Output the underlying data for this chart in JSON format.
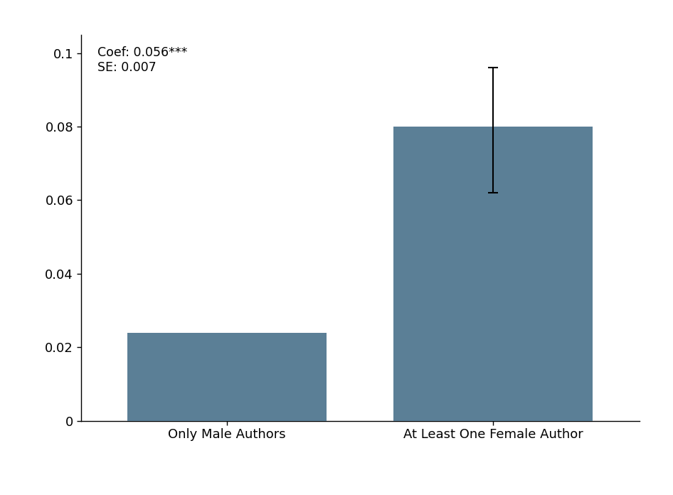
{
  "categories": [
    "Only Male Authors",
    "At Least One Female Author"
  ],
  "values": [
    0.024,
    0.08
  ],
  "bar_color": "#5b7f96",
  "error_upper": 0.016,
  "error_lower": 0.018,
  "error_bar_position": 1,
  "annotation_text": "Coef: 0.056***\nSE: 0.007",
  "ylim": [
    0,
    0.105
  ],
  "yticks": [
    0,
    0.02,
    0.04,
    0.06,
    0.08,
    0.1
  ],
  "ytick_labels": [
    "0",
    "0.02",
    "0.04",
    "0.06",
    "0.08",
    "0.1"
  ],
  "figsize": [
    9.46,
    6.96
  ],
  "dpi": 100,
  "background_color": "#ffffff",
  "bar_width": 0.75,
  "annotation_fontsize": 12.5
}
